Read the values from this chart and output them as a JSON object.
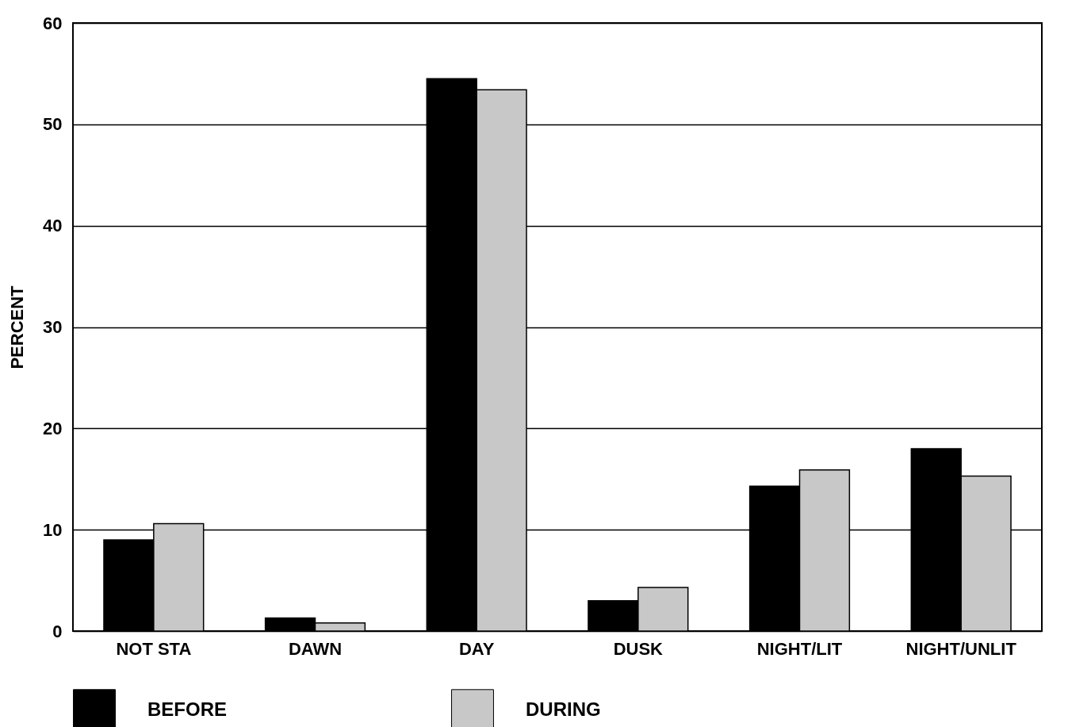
{
  "chart_data": {
    "type": "bar",
    "ylabel": "PERCENT",
    "categories": [
      "NOT  STA",
      "DAWN",
      "DAY",
      "DUSK",
      "NIGHT/LIT",
      "NIGHT/UNLIT"
    ],
    "series": [
      {
        "name": "BEFORE",
        "color": "#000000",
        "values": [
          9.0,
          1.3,
          54.5,
          3.0,
          14.3,
          18.0
        ]
      },
      {
        "name": "DURING",
        "color": "#c8c8c8",
        "values": [
          10.6,
          0.8,
          53.4,
          4.3,
          15.9,
          15.3
        ]
      }
    ],
    "ylim": [
      0,
      60
    ],
    "yticks": [
      0,
      10,
      20,
      30,
      40,
      50,
      60
    ],
    "grid": "y",
    "legend": "bottom"
  }
}
